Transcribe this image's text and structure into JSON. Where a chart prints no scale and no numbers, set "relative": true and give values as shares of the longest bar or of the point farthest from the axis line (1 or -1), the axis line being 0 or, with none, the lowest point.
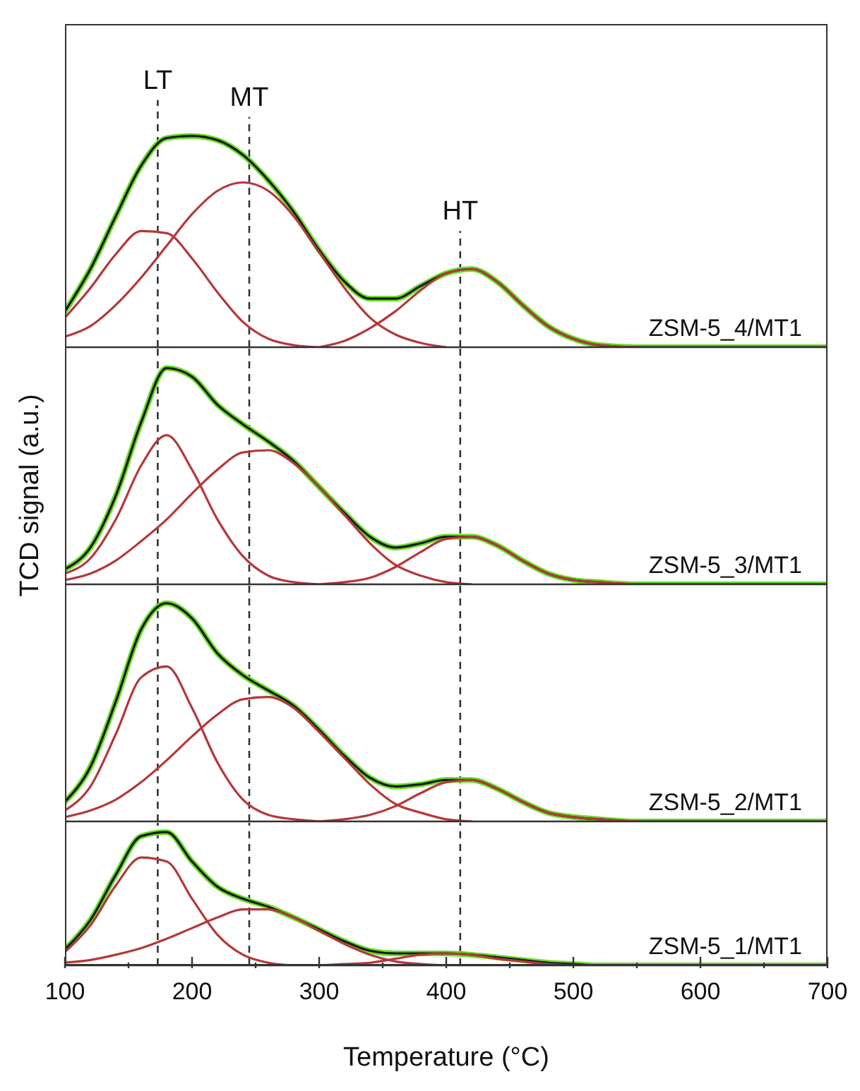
{
  "chart_data": [
    {
      "type": "line",
      "relative": true,
      "ylabel": "TCD signal (a.u.)",
      "xlim": [
        100,
        700
      ],
      "tick_labels": false,
      "annotations": [
        "ZSM-5_4/MT1"
      ],
      "x": [
        100,
        120,
        140,
        160,
        180,
        200,
        220,
        240,
        260,
        280,
        300,
        320,
        340,
        360,
        380,
        400,
        420,
        440,
        460,
        480,
        500,
        520,
        550,
        600,
        650,
        700
      ],
      "ref_lines": [
        {
          "axis": "x",
          "value": 173,
          "label": "LT",
          "color": "#333333",
          "line_style": "dashed"
        },
        {
          "axis": "x",
          "value": 245,
          "label": "MT",
          "color": "#333333",
          "line_style": "dashed"
        },
        {
          "axis": "x",
          "value": 411,
          "label": "HT",
          "color": "#333333",
          "line_style": "dashed"
        }
      ],
      "series": [
        {
          "color": "#66dd22",
          "values": [
            0.17,
            0.37,
            0.62,
            0.86,
            0.99,
            1,
            0.98,
            0.91,
            0.79,
            0.64,
            0.46,
            0.31,
            0.23,
            0.23,
            0.29,
            0.35,
            0.37,
            0.31,
            0.2,
            0.1,
            0.04,
            0.01,
            0,
            0,
            0,
            0
          ]
        },
        {
          "color": "#1a1a1a",
          "values": [
            0.17,
            0.37,
            0.62,
            0.86,
            0.99,
            1,
            0.98,
            0.91,
            0.79,
            0.64,
            0.46,
            0.31,
            0.23,
            0.23,
            0.29,
            0.35,
            0.37,
            0.31,
            0.2,
            0.1,
            0.04,
            0.01,
            0,
            0,
            0,
            0
          ]
        },
        {
          "color": "#b5373a",
          "values": [
            0.14,
            0.28,
            0.44,
            0.55,
            0.54,
            0.42,
            0.26,
            0.12,
            0.04,
            0.01,
            0,
            null,
            null,
            null,
            null,
            null,
            null,
            null,
            null,
            null,
            null,
            null,
            null,
            null,
            null,
            null
          ]
        },
        {
          "color": "#b5373a",
          "values": [
            0.05,
            0.1,
            0.2,
            0.33,
            0.48,
            0.63,
            0.74,
            0.78,
            0.74,
            0.62,
            0.45,
            0.28,
            0.14,
            0.06,
            0.02,
            0,
            null,
            null,
            null,
            null,
            null,
            null,
            null,
            null,
            null,
            null
          ]
        },
        {
          "color": "#b5373a",
          "values": [
            null,
            null,
            null,
            null,
            null,
            null,
            null,
            null,
            null,
            null,
            0,
            0.03,
            0.09,
            0.17,
            0.27,
            0.35,
            0.37,
            0.31,
            0.2,
            0.1,
            0.04,
            0.01,
            0,
            null,
            null,
            null
          ]
        }
      ]
    },
    {
      "type": "line",
      "relative": true,
      "xlim": [
        100,
        700
      ],
      "tick_labels": false,
      "annotations": [
        "ZSM-5_3/MT1"
      ],
      "x": [
        100,
        120,
        140,
        160,
        180,
        200,
        220,
        240,
        260,
        280,
        300,
        320,
        340,
        360,
        380,
        400,
        420,
        440,
        460,
        480,
        500,
        520,
        550,
        600,
        650,
        700
      ],
      "ref_lines": [
        {
          "axis": "x",
          "value": 173,
          "color": "#333333",
          "line_style": "dashed"
        },
        {
          "axis": "x",
          "value": 245,
          "color": "#333333",
          "line_style": "dashed"
        },
        {
          "axis": "x",
          "value": 411,
          "color": "#333333",
          "line_style": "dashed"
        }
      ],
      "series": [
        {
          "color": "#66dd22",
          "values": [
            0.07,
            0.17,
            0.41,
            0.75,
            1,
            0.96,
            0.83,
            0.74,
            0.66,
            0.57,
            0.45,
            0.33,
            0.22,
            0.17,
            0.19,
            0.22,
            0.22,
            0.18,
            0.11,
            0.05,
            0.02,
            0.01,
            0,
            0,
            0,
            0
          ]
        },
        {
          "color": "#1a1a1a",
          "values": [
            0.07,
            0.17,
            0.41,
            0.75,
            1,
            0.96,
            0.83,
            0.74,
            0.66,
            0.57,
            0.45,
            0.33,
            0.22,
            0.17,
            0.19,
            0.22,
            0.22,
            0.18,
            0.11,
            0.05,
            0.02,
            0.01,
            0,
            0,
            0,
            0
          ]
        },
        {
          "color": "#b5373a",
          "values": [
            0.05,
            0.12,
            0.3,
            0.55,
            0.69,
            0.53,
            0.3,
            0.13,
            0.04,
            0.01,
            0,
            null,
            null,
            null,
            null,
            null,
            null,
            null,
            null,
            null,
            null,
            null,
            null,
            null,
            null,
            null
          ]
        },
        {
          "color": "#b5373a",
          "values": [
            0.02,
            0.05,
            0.11,
            0.2,
            0.3,
            0.42,
            0.53,
            0.61,
            0.62,
            0.56,
            0.45,
            0.32,
            0.19,
            0.09,
            0.04,
            0.01,
            0,
            null,
            null,
            null,
            null,
            null,
            null,
            null,
            null,
            null
          ]
        },
        {
          "color": "#b5373a",
          "values": [
            null,
            null,
            null,
            null,
            null,
            null,
            null,
            null,
            null,
            null,
            0,
            0.01,
            0.03,
            0.08,
            0.15,
            0.21,
            0.22,
            0.18,
            0.11,
            0.05,
            0.02,
            0.01,
            0,
            null,
            null,
            null
          ]
        }
      ]
    },
    {
      "type": "line",
      "relative": true,
      "xlim": [
        100,
        700
      ],
      "tick_labels": false,
      "annotations": [
        "ZSM-5_2/MT1"
      ],
      "x": [
        100,
        120,
        140,
        160,
        180,
        200,
        220,
        240,
        260,
        280,
        300,
        320,
        340,
        360,
        380,
        400,
        420,
        440,
        460,
        480,
        500,
        520,
        550,
        600,
        650,
        700
      ],
      "ref_lines": [
        {
          "axis": "x",
          "value": 173,
          "color": "#333333",
          "line_style": "dashed"
        },
        {
          "axis": "x",
          "value": 245,
          "color": "#333333",
          "line_style": "dashed"
        },
        {
          "axis": "x",
          "value": 411,
          "color": "#333333",
          "line_style": "dashed"
        }
      ],
      "series": [
        {
          "color": "#66dd22",
          "values": [
            0.09,
            0.25,
            0.55,
            0.88,
            1,
            0.93,
            0.77,
            0.67,
            0.6,
            0.53,
            0.42,
            0.3,
            0.2,
            0.16,
            0.17,
            0.19,
            0.19,
            0.15,
            0.09,
            0.04,
            0.02,
            0.01,
            0,
            0,
            0,
            0
          ]
        },
        {
          "color": "#1a1a1a",
          "values": [
            0.09,
            0.25,
            0.55,
            0.88,
            1,
            0.93,
            0.77,
            0.67,
            0.6,
            0.53,
            0.42,
            0.3,
            0.2,
            0.16,
            0.17,
            0.19,
            0.19,
            0.15,
            0.09,
            0.04,
            0.02,
            0.01,
            0,
            0,
            0,
            0
          ]
        },
        {
          "color": "#b5373a",
          "values": [
            0.05,
            0.16,
            0.4,
            0.66,
            0.71,
            0.52,
            0.27,
            0.1,
            0.03,
            0.01,
            0,
            null,
            null,
            null,
            null,
            null,
            null,
            null,
            null,
            null,
            null,
            null,
            null,
            null,
            null,
            null
          ]
        },
        {
          "color": "#b5373a",
          "values": [
            0.02,
            0.05,
            0.1,
            0.18,
            0.28,
            0.39,
            0.49,
            0.56,
            0.57,
            0.52,
            0.41,
            0.29,
            0.17,
            0.08,
            0.04,
            0.01,
            0,
            null,
            null,
            null,
            null,
            null,
            null,
            null,
            null,
            null
          ]
        },
        {
          "color": "#b5373a",
          "values": [
            null,
            null,
            null,
            null,
            null,
            null,
            null,
            null,
            null,
            null,
            0,
            0.01,
            0.03,
            0.07,
            0.13,
            0.18,
            0.19,
            0.15,
            0.09,
            0.04,
            0.02,
            0.01,
            0,
            null,
            null,
            null
          ]
        }
      ]
    },
    {
      "type": "line",
      "relative": true,
      "xlabel": "Temperature (°C)",
      "xlim": [
        100,
        700
      ],
      "tick_labels": "x",
      "annotations": [
        "ZSM-5_1/MT1"
      ],
      "xticks": [
        100,
        {
          "value": 150,
          "label": null
        },
        200,
        {
          "value": 250,
          "label": null
        },
        300,
        {
          "value": 350,
          "label": null
        },
        400,
        {
          "value": 450,
          "label": null
        },
        500,
        {
          "value": 550,
          "label": null
        },
        600,
        {
          "value": 650,
          "label": null
        },
        700
      ],
      "x": [
        100,
        120,
        140,
        160,
        180,
        200,
        220,
        240,
        260,
        280,
        300,
        320,
        340,
        360,
        380,
        400,
        420,
        440,
        460,
        480,
        500,
        520,
        550,
        600,
        650,
        700
      ],
      "ref_lines": [
        {
          "axis": "x",
          "value": 173,
          "color": "#333333",
          "line_style": "dashed"
        },
        {
          "axis": "x",
          "value": 245,
          "color": "#333333",
          "line_style": "dashed"
        },
        {
          "axis": "x",
          "value": 411,
          "color": "#333333",
          "line_style": "dashed"
        }
      ],
      "series": [
        {
          "color": "#66dd22",
          "values": [
            0.12,
            0.34,
            0.68,
            0.97,
            1,
            0.78,
            0.59,
            0.5,
            0.44,
            0.36,
            0.27,
            0.18,
            0.11,
            0.09,
            0.09,
            0.09,
            0.08,
            0.06,
            0.04,
            0.02,
            0.01,
            0,
            0,
            0,
            0,
            0
          ]
        },
        {
          "color": "#1a1a1a",
          "values": [
            0.12,
            0.34,
            0.68,
            0.97,
            1,
            0.78,
            0.59,
            0.5,
            0.44,
            0.36,
            0.27,
            0.18,
            0.11,
            0.09,
            0.09,
            0.09,
            0.08,
            0.06,
            0.04,
            0.02,
            0.01,
            0,
            0,
            0,
            0,
            0
          ]
        },
        {
          "color": "#b5373a",
          "values": [
            0.1,
            0.3,
            0.6,
            0.81,
            0.78,
            0.5,
            0.23,
            0.08,
            0.02,
            0,
            null,
            null,
            null,
            null,
            null,
            null,
            null,
            null,
            null,
            null,
            null,
            null,
            null,
            null,
            null,
            null
          ]
        },
        {
          "color": "#b5373a",
          "values": [
            0.02,
            0.04,
            0.08,
            0.13,
            0.2,
            0.28,
            0.36,
            0.42,
            0.42,
            0.36,
            0.26,
            0.16,
            0.08,
            0.03,
            0.01,
            0,
            null,
            null,
            null,
            null,
            null,
            null,
            null,
            null,
            null,
            null
          ]
        },
        {
          "color": "#b5373a",
          "values": [
            null,
            null,
            null,
            null,
            null,
            null,
            null,
            null,
            null,
            null,
            0,
            0.01,
            0.02,
            0.05,
            0.08,
            0.09,
            0.08,
            0.05,
            0.03,
            0.01,
            0,
            null,
            null,
            null,
            null,
            null
          ]
        }
      ]
    }
  ]
}
